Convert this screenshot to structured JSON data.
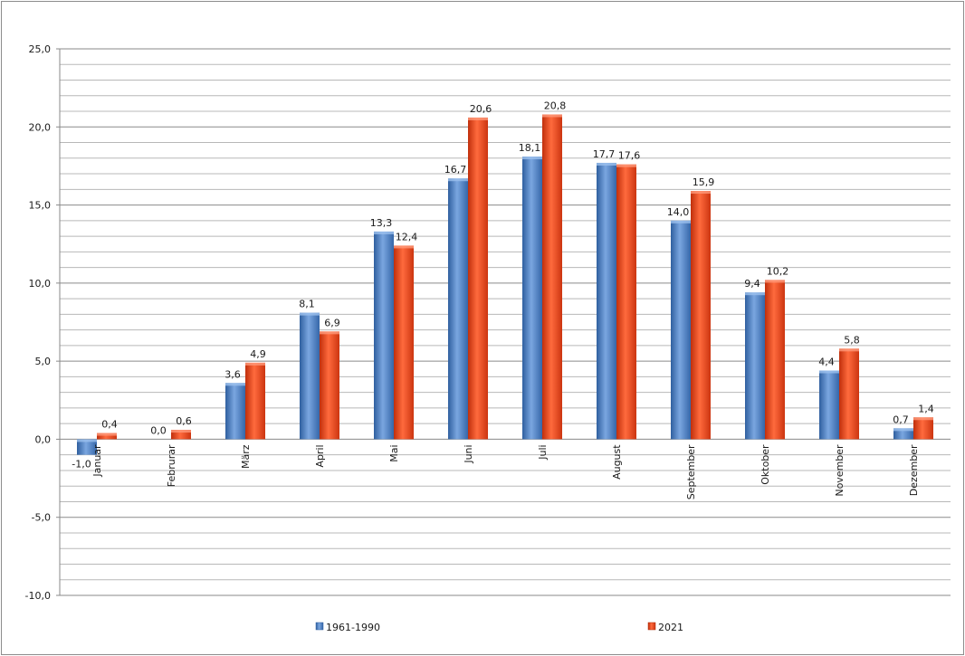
{
  "chart_data": {
    "type": "bar",
    "categories": [
      "Januar",
      "Februrar",
      "März",
      "April",
      "Mai",
      "Juni",
      "Juli",
      "August",
      "September",
      "Oktober",
      "November",
      "Dezember"
    ],
    "series": [
      {
        "name": "1961-1990",
        "color": "#4a7ec7",
        "values": [
          -1.0,
          0.0,
          3.6,
          8.1,
          13.3,
          16.7,
          18.1,
          17.7,
          14.0,
          9.4,
          4.4,
          0.7
        ],
        "labels": [
          "-1,0",
          "0,0",
          "3,6",
          "8,1",
          "13,3",
          "16,7",
          "18,1",
          "17,7",
          "14,0",
          "9,4",
          "4,4",
          "0,7"
        ]
      },
      {
        "name": "2021",
        "color": "#e8431a",
        "values": [
          0.4,
          0.6,
          4.9,
          6.9,
          12.4,
          20.6,
          20.8,
          17.6,
          15.9,
          10.2,
          5.8,
          1.4
        ],
        "labels": [
          "0,4",
          "0,6",
          "4,9",
          "6,9",
          "12,4",
          "20,6",
          "20,8",
          "17,6",
          "15,9",
          "10,2",
          "5,8",
          "1,4"
        ]
      }
    ],
    "ylim": [
      -10,
      25
    ],
    "yticks": [
      25,
      20,
      15,
      10,
      5,
      0,
      -5,
      -10
    ],
    "ytick_labels": [
      "25,0",
      "20,0",
      "15,0",
      "10,0",
      "5,0",
      "0,0",
      "-5,0",
      "-10,0"
    ],
    "minor_grid_step": 1,
    "grid": true,
    "legend_position": "bottom",
    "title": "",
    "xlabel": "",
    "ylabel": ""
  }
}
